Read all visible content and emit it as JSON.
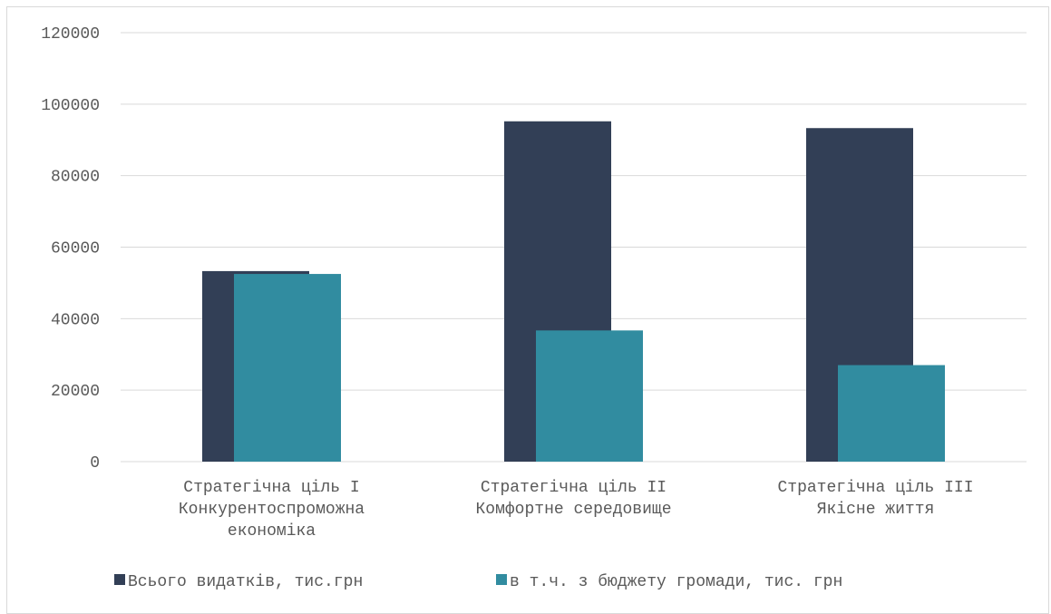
{
  "chart_data": {
    "type": "bar",
    "categories": [
      [
        "Стратегічна ціль I",
        "Конкурентоспроможна",
        "економіка"
      ],
      [
        "Стратегічна ціль II",
        "Комфортне середовище"
      ],
      [
        "Стратегічна ціль III",
        "Якісне життя"
      ]
    ],
    "series": [
      {
        "name": "Всього видатків, тис.грн",
        "color": "#323F56",
        "values": [
          53300,
          95200,
          93300
        ]
      },
      {
        "name": "в т.ч. з бюджету громади, тис. грн",
        "color": "#318CA0",
        "values": [
          52500,
          36700,
          27000
        ]
      }
    ],
    "ylim": [
      0,
      120000
    ],
    "yticks": [
      0,
      20000,
      40000,
      60000,
      80000,
      100000,
      120000
    ],
    "grid": true,
    "legend": "bottom",
    "title": "",
    "xlabel": "",
    "ylabel": ""
  }
}
